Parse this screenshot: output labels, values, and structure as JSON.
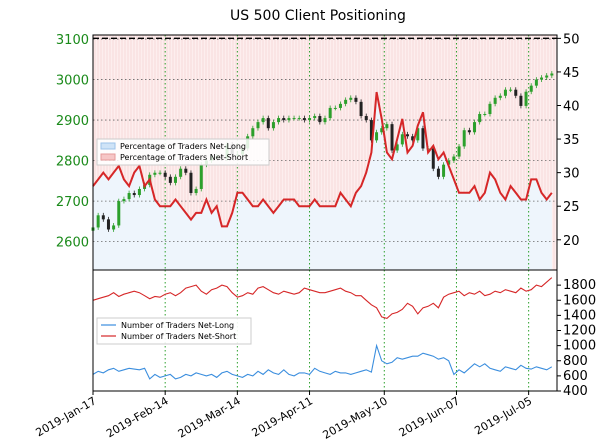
{
  "chart_data": {
    "type": "line",
    "title": "US 500 Client Positioning",
    "x_ticks": [
      "2019-Jan-17",
      "2019-Feb-14",
      "2019-Mar-14",
      "2019-Apr-11",
      "2019-May-10",
      "2019-Jun-07",
      "2019-Jul-05"
    ],
    "x_tick_days": [
      0,
      28,
      56,
      84,
      113,
      141,
      169
    ],
    "x_range_days": [
      0,
      180
    ],
    "colors": {
      "net_long": "#4a90d9",
      "net_short": "#d62728",
      "price_up": "#2ca02c",
      "price_down": "#222222",
      "left_axis": "#1a8a1a"
    },
    "top_panel": {
      "left_axis": {
        "ylim": [
          2530,
          3110
        ],
        "ticks": [
          2600,
          2700,
          2800,
          2900,
          3000,
          3100
        ]
      },
      "right_axis": {
        "ylim": [
          15.5,
          50.5
        ],
        "ticks": [
          20,
          25,
          30,
          35,
          40,
          45,
          50
        ]
      },
      "legend": {
        "placement": "middle-left",
        "entries": [
          "Percentage of Traders Net-Long",
          "Percentage of Traders Net-Short"
        ]
      },
      "price_series": {
        "name": "US 500",
        "x_days": [
          0,
          2,
          4,
          6,
          8,
          10,
          12,
          14,
          16,
          18,
          20,
          22,
          24,
          26,
          28,
          30,
          32,
          34,
          36,
          38,
          40,
          42,
          44,
          46,
          48,
          50,
          52,
          54,
          56,
          58,
          60,
          62,
          64,
          66,
          68,
          70,
          72,
          74,
          76,
          78,
          80,
          82,
          84,
          86,
          88,
          90,
          92,
          94,
          96,
          98,
          100,
          102,
          104,
          106,
          108,
          110,
          112,
          114,
          116,
          118,
          120,
          122,
          124,
          126,
          128,
          130,
          132,
          134,
          136,
          138,
          140,
          142,
          144,
          146,
          148,
          150,
          152,
          154,
          156,
          158,
          160,
          162,
          164,
          166,
          168,
          170,
          172,
          174,
          176,
          178
        ],
        "values": [
          2635,
          2665,
          2655,
          2630,
          2640,
          2700,
          2705,
          2720,
          2715,
          2730,
          2740,
          2765,
          2770,
          2770,
          2760,
          2745,
          2760,
          2780,
          2770,
          2720,
          2730,
          2790,
          2800,
          2810,
          2810,
          2805,
          2840,
          2815,
          2815,
          2830,
          2860,
          2880,
          2895,
          2905,
          2880,
          2895,
          2905,
          2900,
          2905,
          2905,
          2905,
          2900,
          2905,
          2910,
          2895,
          2905,
          2930,
          2930,
          2940,
          2950,
          2955,
          2945,
          2910,
          2900,
          2850,
          2870,
          2880,
          2890,
          2825,
          2840,
          2865,
          2860,
          2850,
          2880,
          2830,
          2830,
          2780,
          2760,
          2790,
          2800,
          2810,
          2835,
          2875,
          2870,
          2895,
          2915,
          2915,
          2940,
          2955,
          2960,
          2975,
          2975,
          2960,
          2935,
          2970,
          2985,
          3000,
          3005,
          3010,
          3015
        ]
      },
      "net_short_pct": {
        "name": "Percentage of Traders Net-Short",
        "x_days": [
          0,
          2,
          4,
          6,
          8,
          10,
          12,
          14,
          16,
          18,
          20,
          22,
          24,
          26,
          28,
          30,
          32,
          34,
          36,
          38,
          40,
          42,
          44,
          46,
          48,
          50,
          52,
          54,
          56,
          58,
          60,
          62,
          64,
          66,
          68,
          70,
          72,
          74,
          76,
          78,
          80,
          82,
          84,
          86,
          88,
          90,
          92,
          94,
          96,
          98,
          100,
          102,
          104,
          106,
          108,
          110,
          112,
          114,
          116,
          118,
          120,
          122,
          124,
          126,
          128,
          130,
          132,
          134,
          136,
          138,
          140,
          142,
          144,
          146,
          148,
          150,
          152,
          154,
          156,
          158,
          160,
          162,
          164,
          166,
          168,
          170,
          172,
          174,
          176,
          178
        ],
        "values": [
          28,
          29,
          30,
          29,
          30,
          31,
          29,
          28,
          30,
          31,
          28,
          29,
          26,
          25,
          25,
          25,
          26,
          25,
          24,
          23,
          24,
          24,
          26,
          24,
          25,
          22,
          22,
          24,
          27,
          27,
          26,
          25,
          25,
          26,
          25,
          24,
          25,
          26,
          26,
          26,
          25,
          25,
          25,
          26,
          25,
          25,
          25,
          25,
          27,
          26,
          25,
          27,
          28,
          30,
          33,
          42,
          38,
          33,
          32,
          35,
          38,
          33,
          34,
          37,
          39,
          33,
          34,
          32,
          33,
          31,
          29,
          27,
          27,
          27,
          28,
          26,
          27,
          30,
          29,
          27,
          26,
          28,
          27,
          26,
          26,
          29,
          29,
          27,
          26,
          27
        ]
      }
    },
    "bottom_panel": {
      "ylim": [
        400,
        2000
      ],
      "ticks": [
        400,
        600,
        800,
        1000,
        1200,
        1400,
        1600,
        1800
      ],
      "legend": {
        "placement": "middle-left",
        "entries": [
          "Number of Traders Net-Long",
          "Number of Traders Net-Short"
        ]
      },
      "net_long_count": {
        "name": "Number of Traders Net-Long",
        "x_days": [
          0,
          2,
          4,
          6,
          8,
          10,
          12,
          14,
          16,
          18,
          20,
          22,
          24,
          26,
          28,
          30,
          32,
          34,
          36,
          38,
          40,
          42,
          44,
          46,
          48,
          50,
          52,
          54,
          56,
          58,
          60,
          62,
          64,
          66,
          68,
          70,
          72,
          74,
          76,
          78,
          80,
          82,
          84,
          86,
          88,
          90,
          92,
          94,
          96,
          98,
          100,
          102,
          104,
          106,
          108,
          110,
          112,
          114,
          116,
          118,
          120,
          122,
          124,
          126,
          128,
          130,
          132,
          134,
          136,
          138,
          140,
          142,
          144,
          146,
          148,
          150,
          152,
          154,
          156,
          158,
          160,
          162,
          164,
          166,
          168,
          170,
          172,
          174,
          176,
          178
        ],
        "values": [
          620,
          660,
          640,
          680,
          700,
          660,
          680,
          700,
          690,
          680,
          700,
          560,
          620,
          580,
          600,
          620,
          560,
          580,
          620,
          600,
          640,
          620,
          600,
          620,
          580,
          640,
          660,
          620,
          600,
          580,
          620,
          600,
          660,
          620,
          680,
          640,
          620,
          680,
          620,
          600,
          640,
          640,
          620,
          700,
          660,
          640,
          620,
          660,
          640,
          640,
          620,
          640,
          660,
          680,
          650,
          1000,
          800,
          760,
          780,
          840,
          820,
          840,
          860,
          860,
          900,
          880,
          860,
          820,
          840,
          800,
          620,
          680,
          640,
          700,
          760,
          720,
          760,
          700,
          680,
          660,
          720,
          700,
          680,
          740,
          700,
          690,
          720,
          700,
          680,
          720
        ]
      },
      "net_short_count": {
        "name": "Number of Traders Net-Short",
        "x_days": [
          0,
          2,
          4,
          6,
          8,
          10,
          12,
          14,
          16,
          18,
          20,
          22,
          24,
          26,
          28,
          30,
          32,
          34,
          36,
          38,
          40,
          42,
          44,
          46,
          48,
          50,
          52,
          54,
          56,
          58,
          60,
          62,
          64,
          66,
          68,
          70,
          72,
          74,
          76,
          78,
          80,
          82,
          84,
          86,
          88,
          90,
          92,
          94,
          96,
          98,
          100,
          102,
          104,
          106,
          108,
          110,
          112,
          114,
          116,
          118,
          120,
          122,
          124,
          126,
          128,
          130,
          132,
          134,
          136,
          138,
          140,
          142,
          144,
          146,
          148,
          150,
          152,
          154,
          156,
          158,
          160,
          162,
          164,
          166,
          168,
          170,
          172,
          174,
          176,
          178
        ],
        "values": [
          1600,
          1620,
          1640,
          1660,
          1700,
          1650,
          1680,
          1700,
          1720,
          1700,
          1660,
          1620,
          1650,
          1640,
          1680,
          1700,
          1660,
          1700,
          1760,
          1780,
          1800,
          1720,
          1680,
          1740,
          1760,
          1800,
          1780,
          1700,
          1640,
          1660,
          1700,
          1680,
          1760,
          1780,
          1740,
          1700,
          1680,
          1720,
          1700,
          1680,
          1700,
          1760,
          1740,
          1720,
          1700,
          1700,
          1720,
          1740,
          1760,
          1720,
          1700,
          1660,
          1660,
          1600,
          1540,
          1500,
          1380,
          1360,
          1420,
          1440,
          1480,
          1560,
          1520,
          1420,
          1500,
          1520,
          1560,
          1500,
          1640,
          1680,
          1700,
          1720,
          1660,
          1700,
          1680,
          1720,
          1660,
          1680,
          1720,
          1700,
          1740,
          1720,
          1700,
          1760,
          1720,
          1740,
          1800,
          1780,
          1840,
          1900
        ]
      }
    }
  }
}
